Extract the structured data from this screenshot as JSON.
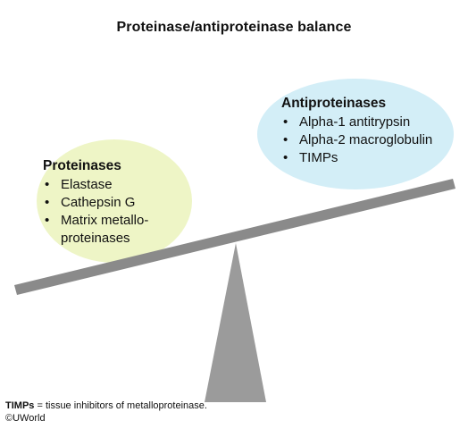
{
  "title": "Proteinase/antiproteinase balance",
  "proteinases": {
    "heading": "Proteinases",
    "items": [
      "Elastase",
      "Cathepsin G",
      "Matrix metallo-",
      "proteinases"
    ]
  },
  "antiproteinases": {
    "heading": "Antiproteinases",
    "items": [
      "Alpha-1 antitrypsin",
      "Alpha-2 macroglobulin",
      "TIMPs"
    ]
  },
  "footnote": {
    "term": "TIMPs",
    "definition": " = tissue inhibitors of metalloproteinase."
  },
  "copyright": "©UWorld",
  "colors": {
    "proteinase_fill": "#eef5c6",
    "antiproteinase_fill": "#d3eef7",
    "beam": "#8a8a8a",
    "fulcrum": "#9b9b9b"
  }
}
